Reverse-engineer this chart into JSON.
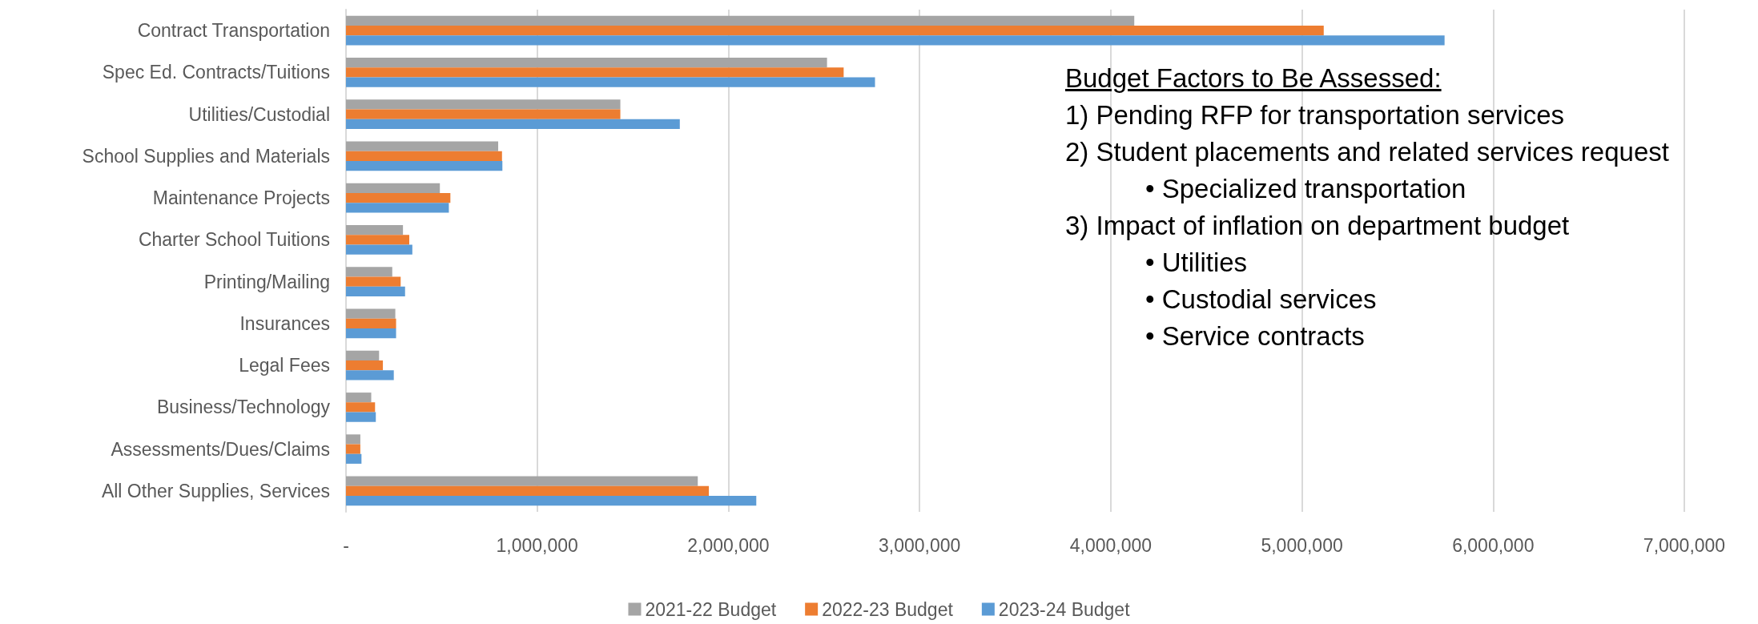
{
  "chart_data": {
    "type": "bar",
    "orientation": "horizontal",
    "categories": [
      "Contract Transportation",
      "Spec Ed. Contracts/Tuitions",
      "Utilities/Custodial",
      "School Supplies and Materials",
      "Maintenance Projects",
      "Charter School Tuitions",
      "Printing/Mailing",
      "Insurances",
      "Legal Fees",
      "Business/Technology",
      "Assessments/Dues/Claims",
      "All Other Supplies, Services"
    ],
    "series": [
      {
        "name": "2021-22 Budget",
        "color": "#a5a5a5",
        "values": [
          4123000,
          2516000,
          1435000,
          796000,
          491000,
          298000,
          242000,
          258000,
          173000,
          132000,
          75000,
          1840000
        ]
      },
      {
        "name": "2022-23 Budget",
        "color": "#ed7d31",
        "values": [
          5114000,
          2603000,
          1435000,
          816000,
          546000,
          331000,
          286000,
          262000,
          193000,
          152000,
          75000,
          1898000
        ]
      },
      {
        "name": "2023-24 Budget",
        "color": "#5b9bd5",
        "values": [
          5746000,
          2767000,
          1746000,
          818000,
          538000,
          347000,
          309000,
          262000,
          250000,
          156000,
          81000,
          2146000
        ]
      }
    ],
    "xlim": [
      0,
      7000000
    ],
    "xticks": [
      {
        "value": 0,
        "label": "-"
      },
      {
        "value": 1000000,
        "label": "1,000,000"
      },
      {
        "value": 2000000,
        "label": "2,000,000"
      },
      {
        "value": 3000000,
        "label": "3,000,000"
      },
      {
        "value": 4000000,
        "label": "4,000,000"
      },
      {
        "value": 5000000,
        "label": "5,000,000"
      },
      {
        "value": 6000000,
        "label": "6,000,000"
      },
      {
        "value": 7000000,
        "label": "7,000,000"
      }
    ],
    "grid": "x",
    "legend": "bottom",
    "annotations": [
      "Budget Factors to Be Assessed:",
      "1) Pending RFP for transportation services",
      "2) Student placements and related services request",
      "• Specialized transportation",
      "3) Impact of inflation on department budget",
      "• Utilities",
      "• Custodial services",
      "• Service contracts"
    ]
  }
}
